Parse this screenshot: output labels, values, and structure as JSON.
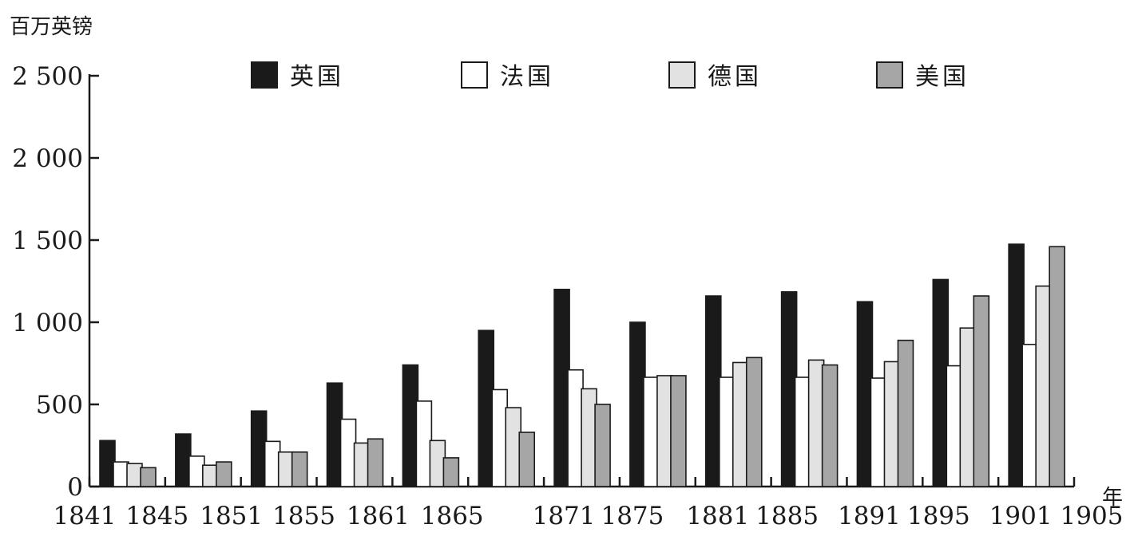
{
  "chart_data": {
    "type": "bar",
    "ylabel": "百万英镑",
    "xlabel": "年",
    "ylim": [
      0,
      2500
    ],
    "yticks": [
      0,
      500,
      1000,
      1500,
      2000,
      2500
    ],
    "ytick_labels": [
      "0",
      "500",
      "1 000",
      "1 500",
      "2 000",
      "2 500"
    ],
    "x_tick_labels": [
      "1841",
      "1845",
      "1851",
      "1855",
      "1861",
      "1865",
      "1871",
      "1875",
      "1881",
      "1885",
      "1891",
      "1895",
      "1901",
      "1905"
    ],
    "categories": [
      "1841-1845",
      "1845-1851",
      "1851-1855",
      "1855-1861",
      "1861-1865",
      "1865-1871",
      "1871-1875",
      "1875-1881",
      "1881-1885",
      "1885-1891",
      "1891-1895",
      "1895-1901",
      "1901-1905"
    ],
    "legend_position": "top",
    "grid": false,
    "series": [
      {
        "name": "英国",
        "color": "#1a1a1a",
        "values": [
          280,
          320,
          460,
          630,
          740,
          950,
          1200,
          1000,
          1160,
          1185,
          1125,
          1260,
          1475
        ]
      },
      {
        "name": "法国",
        "color": "#ffffff",
        "values": [
          150,
          185,
          275,
          410,
          520,
          590,
          710,
          665,
          665,
          665,
          660,
          735,
          865
        ]
      },
      {
        "name": "德国",
        "color": "#e2e2e2",
        "values": [
          140,
          130,
          210,
          265,
          280,
          480,
          595,
          675,
          755,
          770,
          760,
          965,
          1220
        ]
      },
      {
        "name": "美国",
        "color": "#a6a6a6",
        "values": [
          115,
          150,
          210,
          290,
          175,
          330,
          500,
          675,
          785,
          740,
          890,
          1160,
          1460
        ]
      }
    ]
  }
}
